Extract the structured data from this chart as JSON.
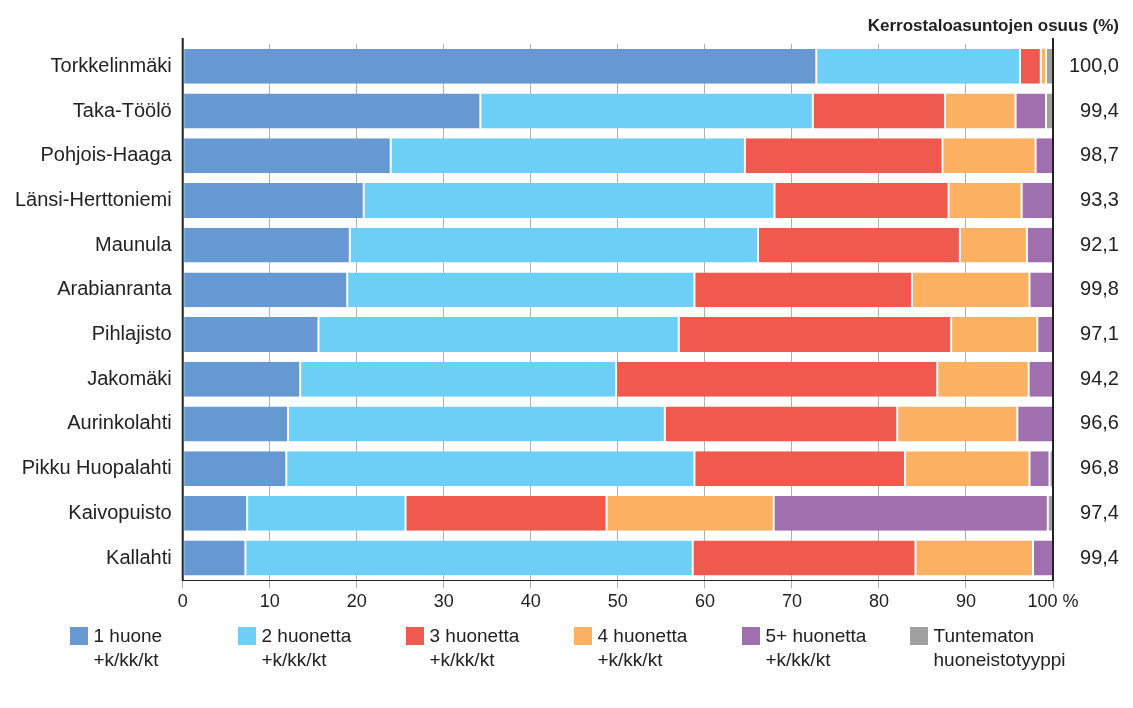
{
  "chart_data": {
    "type": "bar",
    "orientation": "horizontal",
    "stacked": true,
    "title": "Kerrostaloasuntojen osuus (%)",
    "categories": [
      "Torkkelinmäki",
      "Taka-Töölö",
      "Pohjois-Haaga",
      "Länsi-Herttoniemi",
      "Maunula",
      "Arabianranta",
      "Pihlajisto",
      "Jakomäki",
      "Aurinkolahti",
      "Pikku Huopalahti",
      "Kaivopuisto",
      "Kallahti"
    ],
    "series": [
      {
        "name": "1 huone +k/kk/kt",
        "color": "#6699d2",
        "values": [
          72.8,
          34.2,
          23.9,
          20.8,
          19.2,
          18.9,
          15.6,
          13.5,
          12.1,
          11.9,
          7.4,
          7.2
        ]
      },
      {
        "name": "2 huonetta +k/kk/kt",
        "color": "#6dcff5",
        "values": [
          23.4,
          38.2,
          40.7,
          47.2,
          46.9,
          39.9,
          41.4,
          36.3,
          43.3,
          46.9,
          18.2,
          51.4
        ]
      },
      {
        "name": "3 huonetta +k/kk/kt",
        "color": "#f05a4e",
        "values": [
          2.4,
          15.2,
          22.7,
          20.0,
          23.2,
          25.0,
          31.3,
          36.9,
          26.7,
          24.2,
          23.1,
          25.6
        ]
      },
      {
        "name": "4 huonetta +k/kk/kt",
        "color": "#fbb062",
        "values": [
          0.6,
          8.1,
          10.7,
          8.4,
          7.7,
          13.5,
          9.9,
          10.5,
          13.8,
          14.3,
          19.2,
          13.5
        ]
      },
      {
        "name": "5+ huonetta +k/kk/kt",
        "color": "#9f6fae",
        "values": [
          0,
          3.5,
          2.0,
          3.6,
          3.0,
          2.7,
          1.8,
          2.8,
          4.1,
          2.3,
          31.5,
          2.3
        ]
      },
      {
        "name": "Tuntematon huoneistotyyppi",
        "color": "#a0a0a0",
        "values": [
          0.8,
          0.8,
          0,
          0,
          0,
          0,
          0,
          0,
          0,
          0.4,
          0.6,
          0
        ]
      }
    ],
    "xlim": [
      0,
      100
    ],
    "xticks": [
      0,
      10,
      20,
      30,
      40,
      50,
      60,
      70,
      80,
      90,
      {
        "value": 100,
        "label": "100 %"
      }
    ],
    "grid": "x",
    "legend": "bottom",
    "annotations": [
      "100,0",
      "99,4",
      "98,7",
      "93,3",
      "92,1",
      "99,8",
      "97,1",
      "94,2",
      "96,6",
      "96,8",
      "97,4",
      "99,4"
    ]
  }
}
